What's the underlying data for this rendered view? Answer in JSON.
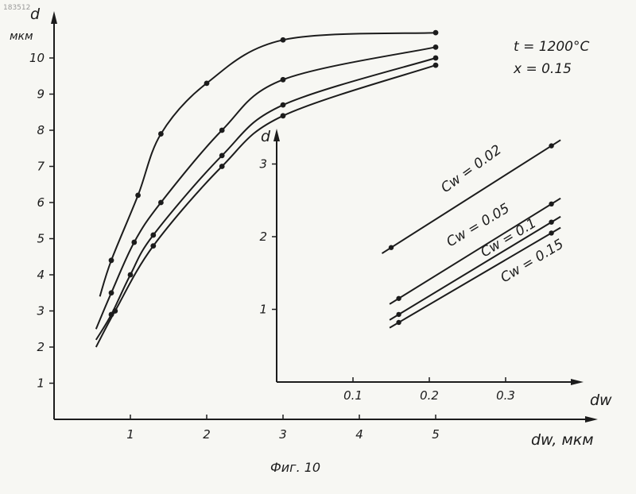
{
  "chart_data": [
    {
      "type": "line",
      "ylabel": "d",
      "yunit": "мкм",
      "xlabel": "dw, мкм",
      "xlim": [
        0,
        5.5
      ],
      "ylim": [
        0,
        11
      ],
      "xticks": [
        "1",
        "2",
        "3",
        "4",
        "5"
      ],
      "yticks": [
        "1",
        "2",
        "3",
        "4",
        "5",
        "6",
        "7",
        "8",
        "9",
        "10"
      ],
      "annotations": [
        "t = 1200°C",
        "x = 0.15"
      ],
      "series": [
        {
          "points": [
            [
              0.6,
              3.4
            ],
            [
              0.75,
              4.4
            ],
            [
              1.1,
              6.2
            ],
            [
              1.4,
              7.9
            ],
            [
              2.0,
              9.3
            ],
            [
              3.0,
              10.5
            ],
            [
              5.0,
              10.7
            ]
          ]
        },
        {
          "points": [
            [
              0.55,
              2.5
            ],
            [
              0.75,
              3.5
            ],
            [
              1.05,
              4.9
            ],
            [
              1.4,
              6.0
            ],
            [
              2.2,
              8.0
            ],
            [
              3.0,
              9.4
            ],
            [
              5.0,
              10.3
            ]
          ]
        },
        {
          "points": [
            [
              0.55,
              2.2
            ],
            [
              0.75,
              2.9
            ],
            [
              1.0,
              4.0
            ],
            [
              1.3,
              5.1
            ],
            [
              2.2,
              7.3
            ],
            [
              3.0,
              8.7
            ],
            [
              5.0,
              10.0
            ]
          ]
        },
        {
          "points": [
            [
              0.55,
              2.0
            ],
            [
              0.8,
              3.0
            ],
            [
              1.3,
              4.8
            ],
            [
              2.2,
              7.0
            ],
            [
              3.0,
              8.4
            ],
            [
              5.0,
              9.8
            ]
          ]
        }
      ]
    },
    {
      "type": "line",
      "ylabel": "d",
      "xlabel": "dw",
      "xlim": [
        0,
        0.4
      ],
      "ylim": [
        0,
        3.6
      ],
      "xticks": [
        "0.1",
        "0.2",
        "0.3"
      ],
      "yticks": [
        "1",
        "2",
        "3"
      ],
      "series": [
        {
          "name": "Cw = 0.02",
          "points": [
            [
              0.15,
              1.85
            ],
            [
              0.36,
              3.25
            ]
          ]
        },
        {
          "name": "Cw = 0.05",
          "points": [
            [
              0.16,
              1.15
            ],
            [
              0.36,
              2.45
            ]
          ]
        },
        {
          "name": "Cw = 0.1",
          "points": [
            [
              0.16,
              0.93
            ],
            [
              0.36,
              2.2
            ]
          ]
        },
        {
          "name": "Cw = 0.15",
          "points": [
            [
              0.16,
              0.82
            ],
            [
              0.36,
              2.05
            ]
          ]
        }
      ]
    }
  ],
  "caption": "Фиг. 10",
  "corner_mark": "183512"
}
